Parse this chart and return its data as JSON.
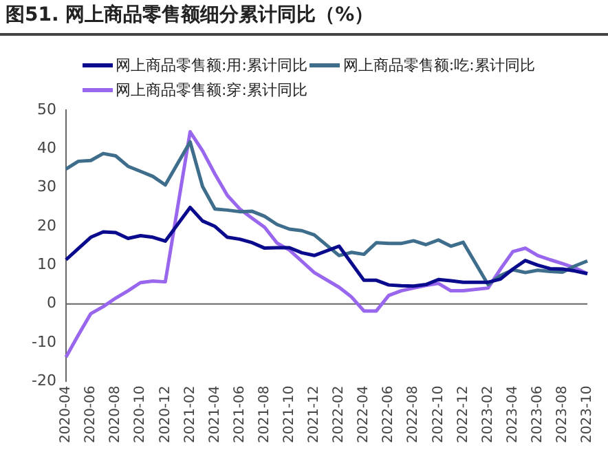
{
  "chart_data": {
    "type": "line",
    "title": "图51. 网上商品零售额细分累计同比（%）",
    "categories": [
      "2020-04",
      null,
      "2020-06",
      null,
      "2020-08",
      null,
      "2020-10",
      null,
      "2020-12",
      null,
      "2021-02",
      null,
      "2021-04",
      null,
      "2021-06",
      null,
      "2021-08",
      null,
      "2021-10",
      null,
      "2021-12",
      null,
      "2022-02",
      null,
      "2022-04",
      null,
      "2022-06",
      null,
      "2022-08",
      null,
      "2022-10",
      null,
      "2022-12",
      null,
      "2023-02",
      null,
      "2023-04",
      null,
      "2023-06",
      null,
      "2023-08",
      null,
      "2023-10"
    ],
    "series": [
      {
        "name": "网上商品零售额:用:累计同比",
        "color": "#0a0a8c",
        "values": [
          11.4,
          14.3,
          17.2,
          18.6,
          18.4,
          16.9,
          17.6,
          17.2,
          16.2,
          null,
          24.9,
          21.4,
          20.0,
          17.2,
          16.7,
          15.8,
          14.4,
          14.5,
          14.5,
          13.2,
          12.5,
          null,
          14.9,
          10.5,
          6.1,
          6.1,
          4.9,
          4.7,
          4.6,
          5.0,
          6.3,
          6.0,
          5.6,
          null,
          5.6,
          6.4,
          9.0,
          11.2,
          10.0,
          9.1,
          9.0,
          8.5,
          7.8
        ]
      },
      {
        "name": "网上商品零售额:吃:累计同比",
        "color": "#3f6e8c",
        "values": [
          34.8,
          36.8,
          37.0,
          38.8,
          38.2,
          35.5,
          34.2,
          32.9,
          30.7,
          null,
          41.8,
          30.3,
          24.5,
          24.2,
          23.8,
          23.9,
          22.6,
          20.5,
          19.3,
          18.9,
          17.8,
          null,
          12.5,
          13.3,
          12.8,
          15.8,
          15.6,
          15.6,
          16.3,
          15.3,
          16.5,
          14.9,
          15.9,
          null,
          5.0,
          7.3,
          8.8,
          8.1,
          8.7,
          8.4,
          8.2,
          9.8,
          11.1
        ]
      },
      {
        "name": "网上商品零售额:穿:累计同比",
        "color": "#9966ee",
        "values": [
          -13.7,
          -8.0,
          -2.5,
          -0.7,
          1.5,
          3.4,
          5.5,
          5.9,
          5.7,
          null,
          44.4,
          39.5,
          33.5,
          28.0,
          24.5,
          22.1,
          19.8,
          15.7,
          13.9,
          11.0,
          8.1,
          null,
          4.3,
          1.8,
          -1.8,
          -1.8,
          2.2,
          3.4,
          4.1,
          4.8,
          5.3,
          3.4,
          3.4,
          null,
          4.1,
          9.0,
          13.5,
          14.4,
          12.5,
          11.4,
          10.4,
          9.3,
          7.8
        ]
      }
    ],
    "ylim": [
      -20,
      50
    ],
    "yticks": [
      -20,
      -10,
      0,
      10,
      20,
      30,
      40,
      50
    ],
    "grid": false,
    "ref_lines": [
      {
        "axis": "y",
        "value": 0,
        "color": "#666666"
      }
    ],
    "legend": "top",
    "marker": "none",
    "line_style": "solid"
  }
}
